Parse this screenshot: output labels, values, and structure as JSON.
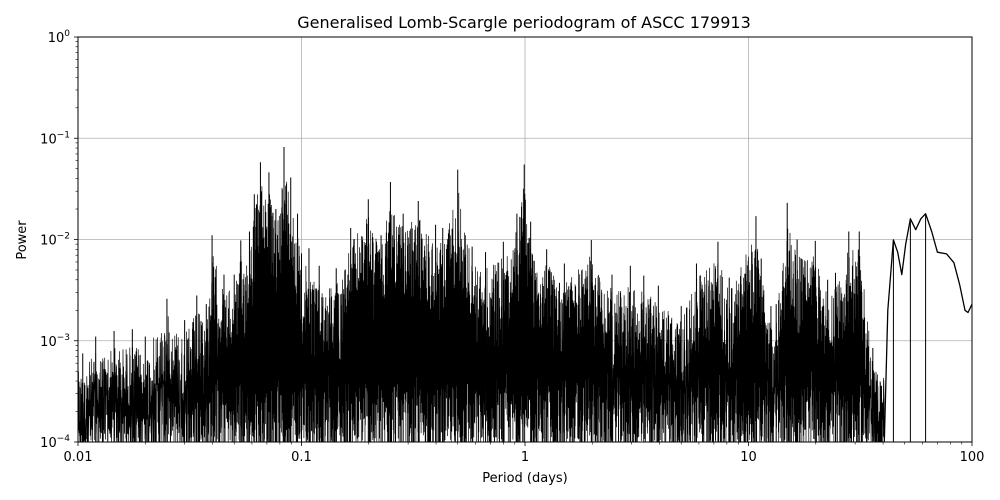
{
  "chart_data": {
    "type": "line",
    "title": "Generalised Lomb-Scargle periodogram of ASCC 179913",
    "xlabel": "Period (days)",
    "ylabel": "Power",
    "xscale": "log",
    "yscale": "log",
    "xlim": [
      0.01,
      100
    ],
    "ylim": [
      0.0001,
      1
    ],
    "grid": true,
    "xticks": [
      {
        "value": 0.01,
        "label": "0.01"
      },
      {
        "value": 0.1,
        "label": "0.1"
      },
      {
        "value": 1,
        "label": "1"
      },
      {
        "value": 10,
        "label": "10"
      },
      {
        "value": 100,
        "label": "100"
      }
    ],
    "yticks": [
      {
        "value": 0.0001,
        "base": "10",
        "exp": "−4"
      },
      {
        "value": 0.001,
        "base": "10",
        "exp": "−3"
      },
      {
        "value": 0.01,
        "base": "10",
        "exp": "−2"
      },
      {
        "value": 0.1,
        "base": "10",
        "exp": "−1"
      },
      {
        "value": 1,
        "base": "10",
        "exp": "0"
      }
    ],
    "line_color": "#000000",
    "peaks": [
      {
        "x": 0.0105,
        "y": 0.00075
      },
      {
        "x": 0.012,
        "y": 0.0011
      },
      {
        "x": 0.0145,
        "y": 0.00125
      },
      {
        "x": 0.0175,
        "y": 0.0013
      },
      {
        "x": 0.02,
        "y": 0.0011
      },
      {
        "x": 0.025,
        "y": 0.0026
      },
      {
        "x": 0.03,
        "y": 0.0016
      },
      {
        "x": 0.034,
        "y": 0.0028
      },
      {
        "x": 0.0375,
        "y": 0.0023
      },
      {
        "x": 0.0398,
        "y": 0.011
      },
      {
        "x": 0.045,
        "y": 0.0045
      },
      {
        "x": 0.05,
        "y": 0.0045
      },
      {
        "x": 0.0535,
        "y": 0.0098
      },
      {
        "x": 0.0585,
        "y": 0.012
      },
      {
        "x": 0.0615,
        "y": 0.028
      },
      {
        "x": 0.0655,
        "y": 0.058
      },
      {
        "x": 0.0715,
        "y": 0.046
      },
      {
        "x": 0.0768,
        "y": 0.02
      },
      {
        "x": 0.0835,
        "y": 0.082
      },
      {
        "x": 0.0895,
        "y": 0.041
      },
      {
        "x": 0.096,
        "y": 0.018
      },
      {
        "x": 0.1,
        "y": 0.0073
      },
      {
        "x": 0.108,
        "y": 0.0082
      },
      {
        "x": 0.12,
        "y": 0.0055
      },
      {
        "x": 0.143,
        "y": 0.0052
      },
      {
        "x": 0.166,
        "y": 0.013
      },
      {
        "x": 0.199,
        "y": 0.025
      },
      {
        "x": 0.227,
        "y": 0.011
      },
      {
        "x": 0.25,
        "y": 0.037
      },
      {
        "x": 0.285,
        "y": 0.018
      },
      {
        "x": 0.333,
        "y": 0.024
      },
      {
        "x": 0.398,
        "y": 0.014
      },
      {
        "x": 0.4285,
        "y": 0.013
      },
      {
        "x": 0.5,
        "y": 0.049
      },
      {
        "x": 0.58,
        "y": 0.0085
      },
      {
        "x": 0.666,
        "y": 0.0075
      },
      {
        "x": 0.8,
        "y": 0.0095
      },
      {
        "x": 0.92,
        "y": 0.018
      },
      {
        "x": 0.992,
        "y": 0.055
      },
      {
        "x": 1.06,
        "y": 0.015
      },
      {
        "x": 1.25,
        "y": 0.008
      },
      {
        "x": 1.5,
        "y": 0.0058
      },
      {
        "x": 1.98,
        "y": 0.0099
      },
      {
        "x": 2.45,
        "y": 0.0045
      },
      {
        "x": 2.96,
        "y": 0.0055
      },
      {
        "x": 3.4,
        "y": 0.0044
      },
      {
        "x": 3.95,
        "y": 0.0035
      },
      {
        "x": 5,
        "y": 0.0022
      },
      {
        "x": 5.85,
        "y": 0.0058
      },
      {
        "x": 7.3,
        "y": 0.0095
      },
      {
        "x": 8.2,
        "y": 0.0042
      },
      {
        "x": 10.8,
        "y": 0.017
      },
      {
        "x": 11.4,
        "y": 0.0065
      },
      {
        "x": 12.6,
        "y": 0.0022
      },
      {
        "x": 13.3,
        "y": 0.0023
      },
      {
        "x": 14.9,
        "y": 0.023
      },
      {
        "x": 16.5,
        "y": 0.01
      },
      {
        "x": 19.9,
        "y": 0.0097
      },
      {
        "x": 22.6,
        "y": 0.004
      },
      {
        "x": 24.5,
        "y": 0.0047
      },
      {
        "x": 28.1,
        "y": 0.012
      },
      {
        "x": 31.3,
        "y": 0.012
      },
      {
        "x": 36,
        "y": 0.00085
      },
      {
        "x": 39.2,
        "y": 0.00036
      },
      {
        "x": 44.5,
        "y": 0.0099
      },
      {
        "x": 53,
        "y": 0.016
      },
      {
        "x": 62,
        "y": 0.018
      }
    ],
    "tail": [
      {
        "x": 40.5,
        "y": 0.0001
      },
      {
        "x": 42,
        "y": 0.002
      },
      {
        "x": 44.5,
        "y": 0.0099
      },
      {
        "x": 46.5,
        "y": 0.0075
      },
      {
        "x": 48.5,
        "y": 0.0045
      },
      {
        "x": 50.5,
        "y": 0.009
      },
      {
        "x": 53,
        "y": 0.016
      },
      {
        "x": 56,
        "y": 0.0125
      },
      {
        "x": 59,
        "y": 0.016
      },
      {
        "x": 62,
        "y": 0.018
      },
      {
        "x": 66,
        "y": 0.012
      },
      {
        "x": 70,
        "y": 0.0075
      },
      {
        "x": 77,
        "y": 0.0072
      },
      {
        "x": 83,
        "y": 0.0059
      },
      {
        "x": 88,
        "y": 0.0036
      },
      {
        "x": 93,
        "y": 0.002
      },
      {
        "x": 96,
        "y": 0.0019
      },
      {
        "x": 100,
        "y": 0.0023
      }
    ]
  }
}
